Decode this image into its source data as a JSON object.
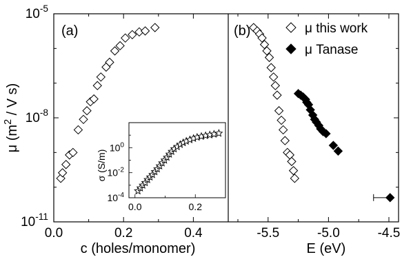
{
  "chart_data": [
    {
      "panel": "(a)",
      "type": "scatter",
      "xlabel": "c (holes/monomer)",
      "xlim": [
        0.0,
        0.5
      ],
      "xticks": [
        "0.0",
        "0.2",
        "0.4"
      ],
      "ylabel": "μ (m² / V s)",
      "yscale": "log",
      "ylim": [
        1e-11,
        1e-05
      ],
      "yticks": [
        {
          "base": "10",
          "exp": "-5"
        },
        {
          "base": "10",
          "exp": "-8"
        },
        {
          "base": "10",
          "exp": "-11"
        }
      ],
      "series": [
        {
          "marker": "open-diamond",
          "points": [
            [
              0.02,
              1.8e-10
            ],
            [
              0.025,
              2.6e-10
            ],
            [
              0.035,
              4.5e-10
            ],
            [
              0.045,
              8.5e-10
            ],
            [
              0.055,
              1e-09
            ],
            [
              0.07,
              4.5e-09
            ],
            [
              0.085,
              9e-09
            ],
            [
              0.095,
              1.6e-08
            ],
            [
              0.105,
              2.9e-08
            ],
            [
              0.115,
              3.5e-08
            ],
            [
              0.125,
              8.5e-08
            ],
            [
              0.135,
              1.5e-07
            ],
            [
              0.15,
              2.9e-07
            ],
            [
              0.16,
              4e-07
            ],
            [
              0.175,
              8.5e-07
            ],
            [
              0.19,
              1.2e-06
            ],
            [
              0.205,
              2e-06
            ],
            [
              0.225,
              2.5e-06
            ],
            [
              0.245,
              3e-06
            ],
            [
              0.262,
              3.2e-06
            ],
            [
              0.29,
              4e-06
            ]
          ]
        }
      ],
      "inset": {
        "type": "scatter",
        "ylabel": "σ (S/m)",
        "yscale": "log",
        "xlim": [
          -0.02,
          0.3
        ],
        "ylim": [
          0.0001,
          100
        ],
        "xticks": [
          "0.0",
          "0.2"
        ],
        "yticks": [
          {
            "base": "10",
            "exp": "0"
          },
          {
            "base": "10",
            "exp": "-2"
          },
          {
            "base": "10",
            "exp": "-4"
          }
        ],
        "series": [
          {
            "marker": "open-star",
            "points": [
              [
                0.01,
                0.00035
              ],
              [
                0.018,
                0.0006
              ],
              [
                0.026,
                0.001
              ],
              [
                0.034,
                0.0016
              ],
              [
                0.042,
                0.0028
              ],
              [
                0.05,
                0.0045
              ],
              [
                0.058,
                0.007
              ],
              [
                0.066,
                0.012
              ],
              [
                0.074,
                0.02
              ],
              [
                0.082,
                0.035
              ],
              [
                0.09,
                0.06
              ],
              [
                0.098,
                0.1
              ],
              [
                0.106,
                0.17
              ],
              [
                0.114,
                0.3
              ],
              [
                0.122,
                0.5
              ],
              [
                0.13,
                0.8
              ],
              [
                0.14,
                1.2
              ],
              [
                0.15,
                1.8
              ],
              [
                0.16,
                2.5
              ],
              [
                0.17,
                3.3
              ],
              [
                0.182,
                4.3
              ],
              [
                0.194,
                5.5
              ],
              [
                0.206,
                6.8
              ],
              [
                0.22,
                8.0
              ],
              [
                0.234,
                9.2
              ],
              [
                0.248,
                10.5
              ],
              [
                0.262,
                12
              ],
              [
                0.278,
                14
              ]
            ]
          }
        ]
      }
    },
    {
      "panel": "(b)",
      "type": "scatter",
      "xlabel": "E (eV)",
      "xlim": [
        -5.83,
        -4.42
      ],
      "xticks": [
        "-5.5",
        "-5.0",
        "-4.5"
      ],
      "yscale": "log",
      "ylim": [
        1e-11,
        1e-05
      ],
      "legend_position": "top-right",
      "series": [
        {
          "name": "μ  this work",
          "marker": "open-diamond",
          "points": [
            [
              -5.62,
              4e-06
            ],
            [
              -5.59,
              3.2e-06
            ],
            [
              -5.57,
              2.6e-06
            ],
            [
              -5.55,
              2e-06
            ],
            [
              -5.53,
              1.3e-06
            ],
            [
              -5.51,
              8.5e-07
            ],
            [
              -5.49,
              5.5e-07
            ],
            [
              -5.475,
              2.8e-07
            ],
            [
              -5.455,
              1.5e-07
            ],
            [
              -5.44,
              8.5e-08
            ],
            [
              -5.425,
              4.5e-08
            ],
            [
              -5.41,
              1.6e-08
            ],
            [
              -5.39,
              8.5e-09
            ],
            [
              -5.375,
              4.5e-09
            ],
            [
              -5.36,
              2.2e-09
            ],
            [
              -5.34,
              1e-09
            ],
            [
              -5.32,
              8.5e-10
            ],
            [
              -5.305,
              5.5e-10
            ],
            [
              -5.29,
              3e-10
            ],
            [
              -5.28,
              1.8e-10
            ]
          ]
        },
        {
          "name": "μ  Tanase",
          "marker": "filled-diamond",
          "points": [
            [
              -5.25,
              5e-08
            ],
            [
              -5.23,
              4.5e-08
            ],
            [
              -5.21,
              4e-08
            ],
            [
              -5.19,
              3.4e-08
            ],
            [
              -5.18,
              2.8e-08
            ],
            [
              -5.165,
              2.4e-08
            ],
            [
              -5.15,
              1.7e-08
            ],
            [
              -5.13,
              1.2e-08
            ],
            [
              -5.115,
              9e-09
            ],
            [
              -5.1,
              7.5e-09
            ],
            [
              -5.08,
              6e-09
            ],
            [
              -5.065,
              4.8e-09
            ],
            [
              -5.045,
              4e-09
            ],
            [
              -5.02,
              3.5e-09
            ],
            [
              -4.96,
              1.6e-09
            ],
            [
              -4.92,
              1.1e-09
            ],
            [
              -4.49,
              5e-11
            ]
          ]
        }
      ]
    }
  ]
}
